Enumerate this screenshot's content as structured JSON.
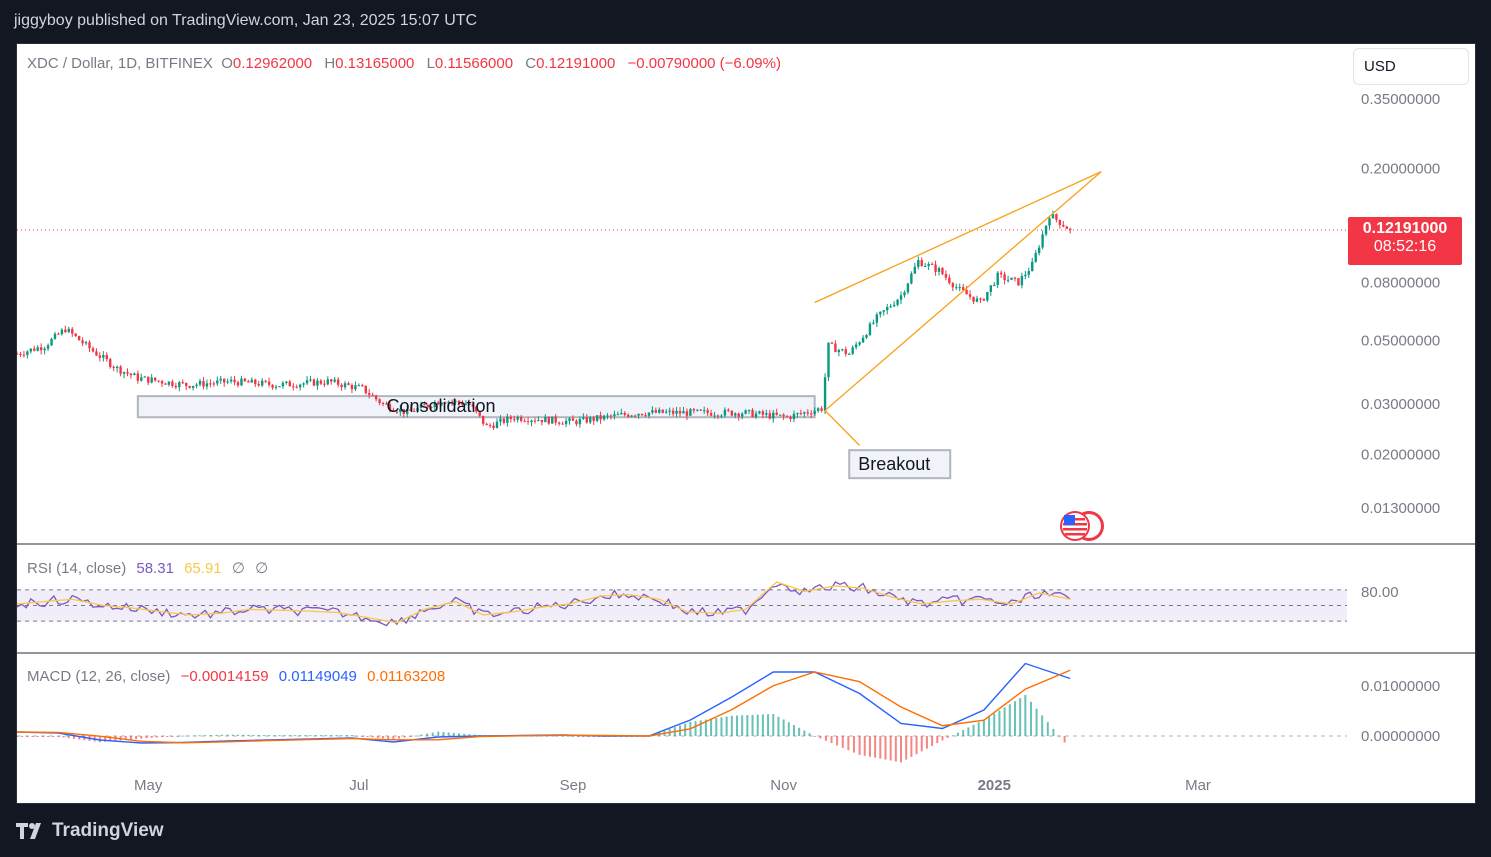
{
  "header": {
    "publisher": "jiggyboy published on TradingView.com, Jan 23, 2025 15:07 UTC"
  },
  "legend": {
    "symbol": "XDC / Dollar, 1D, BITFINEX",
    "open_label": "O",
    "open": "0.12962000",
    "high_label": "H",
    "high": "0.13165000",
    "low_label": "L",
    "low": "0.11566000",
    "close_label": "C",
    "close": "0.12191000",
    "change": "−0.00790000 (−6.09%)"
  },
  "currency": "USD",
  "last_price": {
    "price": "0.12191000",
    "countdown": "08:52:16"
  },
  "annotations": {
    "consolidation": "Consolidation",
    "breakout": "Breakout"
  },
  "rsi": {
    "label": "RSI (14, close)",
    "value": "58.31",
    "ma": "65.91",
    "na1": "∅",
    "na2": "∅"
  },
  "macd": {
    "label": "MACD (12, 26, close)",
    "hist": "−0.00014159",
    "macd": "0.01149049",
    "signal": "0.01163208"
  },
  "footer": {
    "brand": "TradingView"
  },
  "colors": {
    "up": "#089981",
    "down": "#f23645",
    "wedge": "#f7a21b",
    "rsi_line": "#7e57c2",
    "rsi_ma": "#f7c948",
    "macd": "#2962ff",
    "signal": "#ff6d00"
  },
  "chart_data": [
    {
      "type": "candlestick",
      "scale": "log",
      "y_ticks": [
        "0.35000000",
        "0.20000000",
        "0.08000000",
        "0.05000000",
        "0.03000000",
        "0.02000000",
        "0.01300000"
      ],
      "x_ticks": [
        "May",
        "Jul",
        "Sep",
        "Nov",
        "2025",
        "Mar"
      ],
      "close_path": [
        [
          "2024-03-24",
          0.045
        ],
        [
          "2024-04-01",
          0.048
        ],
        [
          "2024-04-07",
          0.055
        ],
        [
          "2024-04-15",
          0.046
        ],
        [
          "2024-04-22",
          0.04
        ],
        [
          "2024-04-28",
          0.037
        ],
        [
          "2024-05-05",
          0.036
        ],
        [
          "2024-05-12",
          0.035
        ],
        [
          "2024-05-25",
          0.036
        ],
        [
          "2024-06-08",
          0.035
        ],
        [
          "2024-06-22",
          0.036
        ],
        [
          "2024-07-02",
          0.034
        ],
        [
          "2024-07-08",
          0.03
        ],
        [
          "2024-07-15",
          0.028
        ],
        [
          "2024-07-25",
          0.031
        ],
        [
          "2024-08-02",
          0.03
        ],
        [
          "2024-08-07",
          0.025
        ],
        [
          "2024-08-15",
          0.027
        ],
        [
          "2024-09-01",
          0.026
        ],
        [
          "2024-09-20",
          0.028
        ],
        [
          "2024-10-05",
          0.028
        ],
        [
          "2024-10-20",
          0.028
        ],
        [
          "2024-11-02",
          0.027
        ],
        [
          "2024-11-07",
          0.028
        ],
        [
          "2024-11-12",
          0.029
        ],
        [
          "2024-11-14",
          0.048
        ],
        [
          "2024-11-20",
          0.045
        ],
        [
          "2024-11-28",
          0.06
        ],
        [
          "2024-12-05",
          0.072
        ],
        [
          "2024-12-10",
          0.095
        ],
        [
          "2024-12-16",
          0.088
        ],
        [
          "2024-12-22",
          0.075
        ],
        [
          "2024-12-28",
          0.068
        ],
        [
          "2025-01-02",
          0.084
        ],
        [
          "2025-01-08",
          0.08
        ],
        [
          "2025-01-12",
          0.092
        ],
        [
          "2025-01-17",
          0.138
        ],
        [
          "2025-01-20",
          0.13
        ],
        [
          "2025-01-23",
          0.12191
        ]
      ]
    },
    {
      "type": "line",
      "name": "RSI (14, close)",
      "y_ticks": [
        "80.00"
      ],
      "values": [
        52,
        55,
        58,
        50,
        47,
        42,
        38,
        40,
        45,
        44,
        43,
        41,
        35,
        28,
        45,
        55,
        38,
        42,
        48,
        52,
        62,
        64,
        58,
        42,
        40,
        45,
        80,
        68,
        75,
        72,
        60,
        52,
        56,
        58,
        52,
        66,
        58
      ]
    },
    {
      "type": "line",
      "name": "MACD (12, 26, close)",
      "y_ticks": [
        "0.01000000",
        "0.00000000"
      ],
      "values": [
        0.0008,
        0.0006,
        -0.0008,
        -0.0014,
        -0.0013,
        -0.001,
        -0.0008,
        -0.0006,
        -0.0004,
        -0.0012,
        -0.0002,
        0.0,
        0.0001,
        0.0002,
        0.0,
        0.0,
        0.0032,
        0.0078,
        0.0128,
        0.0128,
        0.0085,
        0.0025,
        0.0015,
        0.0052,
        0.0145,
        0.0115
      ]
    }
  ]
}
